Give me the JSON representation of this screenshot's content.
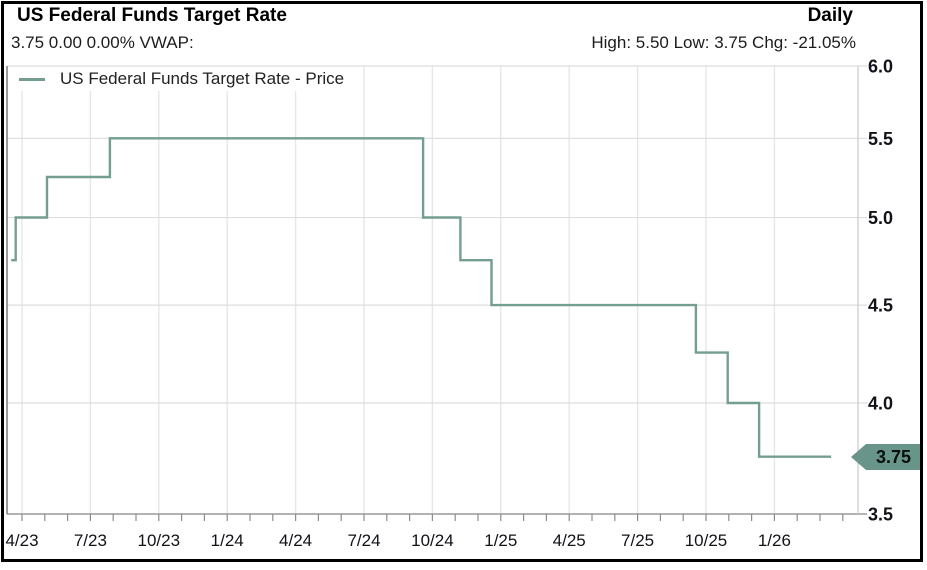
{
  "window": {
    "title": "US Federal Funds Target Rate",
    "period_label": "Daily",
    "quote_line": "3.75 0.00 0.00% VWAP:",
    "stats_line": "High: 5.50 Low: 3.75 Chg: -21.05%"
  },
  "legend": {
    "label": "US Federal Funds Target Rate - Price"
  },
  "price_tag": {
    "value": "3.75"
  },
  "colors": {
    "line": "#749e8e",
    "tag_fill": "#69948a",
    "tag_text": "#06110d",
    "v_grid": "#e7e7e7",
    "h_grid": "#dddddd",
    "axis_bottom": "#9a9a9a",
    "axis_left": "#7a7a7a",
    "plot_right_edge": "#cccccc",
    "minor_tick": "#8c8c8c",
    "label_text": "#121218"
  },
  "chart_data": {
    "type": "line",
    "style": "step",
    "title": "US Federal Funds Target Rate",
    "frequency": "Daily",
    "last_price": 3.75,
    "change": 0.0,
    "change_pct": 0.0,
    "vwap": "",
    "high": 5.5,
    "low": 3.75,
    "period_change_pct": -21.05,
    "grid": true,
    "legend_position": "top-left",
    "y_axis": {
      "scale": "log",
      "min": 3.5,
      "max": 6.0,
      "position": "right",
      "ticks": [
        6.0,
        5.5,
        5.0,
        4.5,
        4.0,
        3.5
      ],
      "tick_labels": [
        "6.0",
        "5.5",
        "5.0",
        "4.5",
        "4.0",
        "3.5"
      ]
    },
    "x_axis": {
      "tick_labels": [
        "4/23",
        "7/23",
        "10/23",
        "1/24",
        "4/24",
        "7/24",
        "10/24",
        "1/25",
        "4/25",
        "7/25",
        "10/25",
        "1/26"
      ],
      "months_per_label": 3,
      "minor_tick_interval": "monthly",
      "minor_tick_count": 37
    },
    "series": [
      {
        "name": "US Federal Funds Target Rate - Price",
        "points": [
          {
            "date": "2023-03-17",
            "value": 4.75
          },
          {
            "date": "2023-03-23",
            "value": 5.0
          },
          {
            "date": "2023-05-04",
            "value": 5.25
          },
          {
            "date": "2023-07-27",
            "value": 5.5
          },
          {
            "date": "2024-09-19",
            "value": 5.0
          },
          {
            "date": "2024-11-08",
            "value": 4.75
          },
          {
            "date": "2024-12-19",
            "value": 4.5
          },
          {
            "date": "2025-09-18",
            "value": 4.25
          },
          {
            "date": "2025-10-30",
            "value": 4.0
          },
          {
            "date": "2025-12-11",
            "value": 3.75
          }
        ],
        "end_date": "2026-03-16"
      }
    ]
  }
}
